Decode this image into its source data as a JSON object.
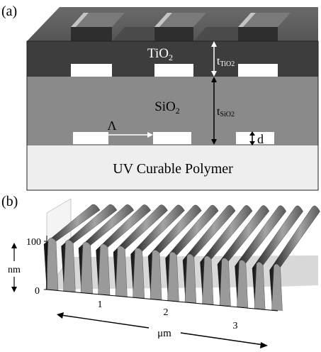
{
  "panel_a": {
    "label": "(a)",
    "layer_top": {
      "name": "TiO",
      "sub": "2"
    },
    "layer_mid": {
      "name": "SiO",
      "sub": "2"
    },
    "layer_bottom": "UV Curable Polymer",
    "thickness_top": {
      "t": "t",
      "sub": "TiO2"
    },
    "thickness_mid": {
      "t": "t",
      "sub": "SiO2"
    },
    "period_symbol": "Λ",
    "depth_symbol": "d"
  },
  "panel_b": {
    "label": "(b)",
    "z_axis": {
      "unit": "nm",
      "ticks": [
        "100",
        "0"
      ]
    },
    "x_axis": {
      "unit": "μm",
      "ticks": [
        "1",
        "2",
        "3"
      ]
    }
  },
  "colors": {
    "tio2": "#3d3d3d",
    "tio2_top": "#606060",
    "tio2_highlight": "#bdbdbd",
    "sio2": "#8a8a8a",
    "polymer": "#eeeeee",
    "ridge_light": "#8e8e8e",
    "ridge_dark": "#202020"
  }
}
